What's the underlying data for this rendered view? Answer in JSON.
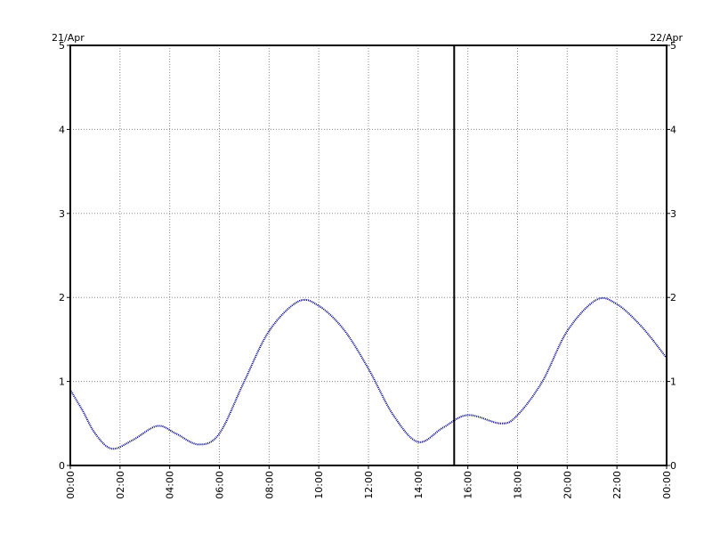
{
  "chart_data": {
    "type": "line",
    "title": "",
    "xlabel": "",
    "ylabel": "",
    "start_date_label": "21/Apr",
    "end_date_label": "22/Apr",
    "x_tick_labels": [
      "00:00",
      "02:00",
      "04:00",
      "06:00",
      "08:00",
      "10:00",
      "12:00",
      "14:00",
      "16:00",
      "18:00",
      "20:00",
      "22:00",
      "00:00"
    ],
    "y_tick_labels": [
      "0",
      "1",
      "2",
      "3",
      "4",
      "5"
    ],
    "xlim": [
      "00:00",
      "24:00"
    ],
    "ylim": [
      0,
      5
    ],
    "grid": true,
    "current_time": "15:27",
    "colors": {
      "series": "#00008b",
      "grid": "#888888",
      "axes": "#000000",
      "marker": "#000000"
    },
    "series": [
      {
        "name": "",
        "points": [
          {
            "x": "00:00",
            "y": 0.9
          },
          {
            "x": "00:30",
            "y": 0.65
          },
          {
            "x": "01:00",
            "y": 0.38
          },
          {
            "x": "01:40",
            "y": 0.2
          },
          {
            "x": "02:30",
            "y": 0.3
          },
          {
            "x": "03:30",
            "y": 0.47
          },
          {
            "x": "04:15",
            "y": 0.38
          },
          {
            "x": "05:10",
            "y": 0.25
          },
          {
            "x": "06:00",
            "y": 0.38
          },
          {
            "x": "07:00",
            "y": 1.0
          },
          {
            "x": "08:00",
            "y": 1.6
          },
          {
            "x": "09:10",
            "y": 1.95
          },
          {
            "x": "10:00",
            "y": 1.9
          },
          {
            "x": "11:00",
            "y": 1.62
          },
          {
            "x": "12:00",
            "y": 1.15
          },
          {
            "x": "13:00",
            "y": 0.6
          },
          {
            "x": "14:00",
            "y": 0.28
          },
          {
            "x": "15:00",
            "y": 0.45
          },
          {
            "x": "16:00",
            "y": 0.6
          },
          {
            "x": "17:20",
            "y": 0.5
          },
          {
            "x": "18:00",
            "y": 0.6
          },
          {
            "x": "19:00",
            "y": 1.0
          },
          {
            "x": "20:00",
            "y": 1.6
          },
          {
            "x": "21:10",
            "y": 1.97
          },
          {
            "x": "22:00",
            "y": 1.92
          },
          {
            "x": "23:00",
            "y": 1.65
          },
          {
            "x": "24:00",
            "y": 1.28
          }
        ]
      }
    ]
  }
}
